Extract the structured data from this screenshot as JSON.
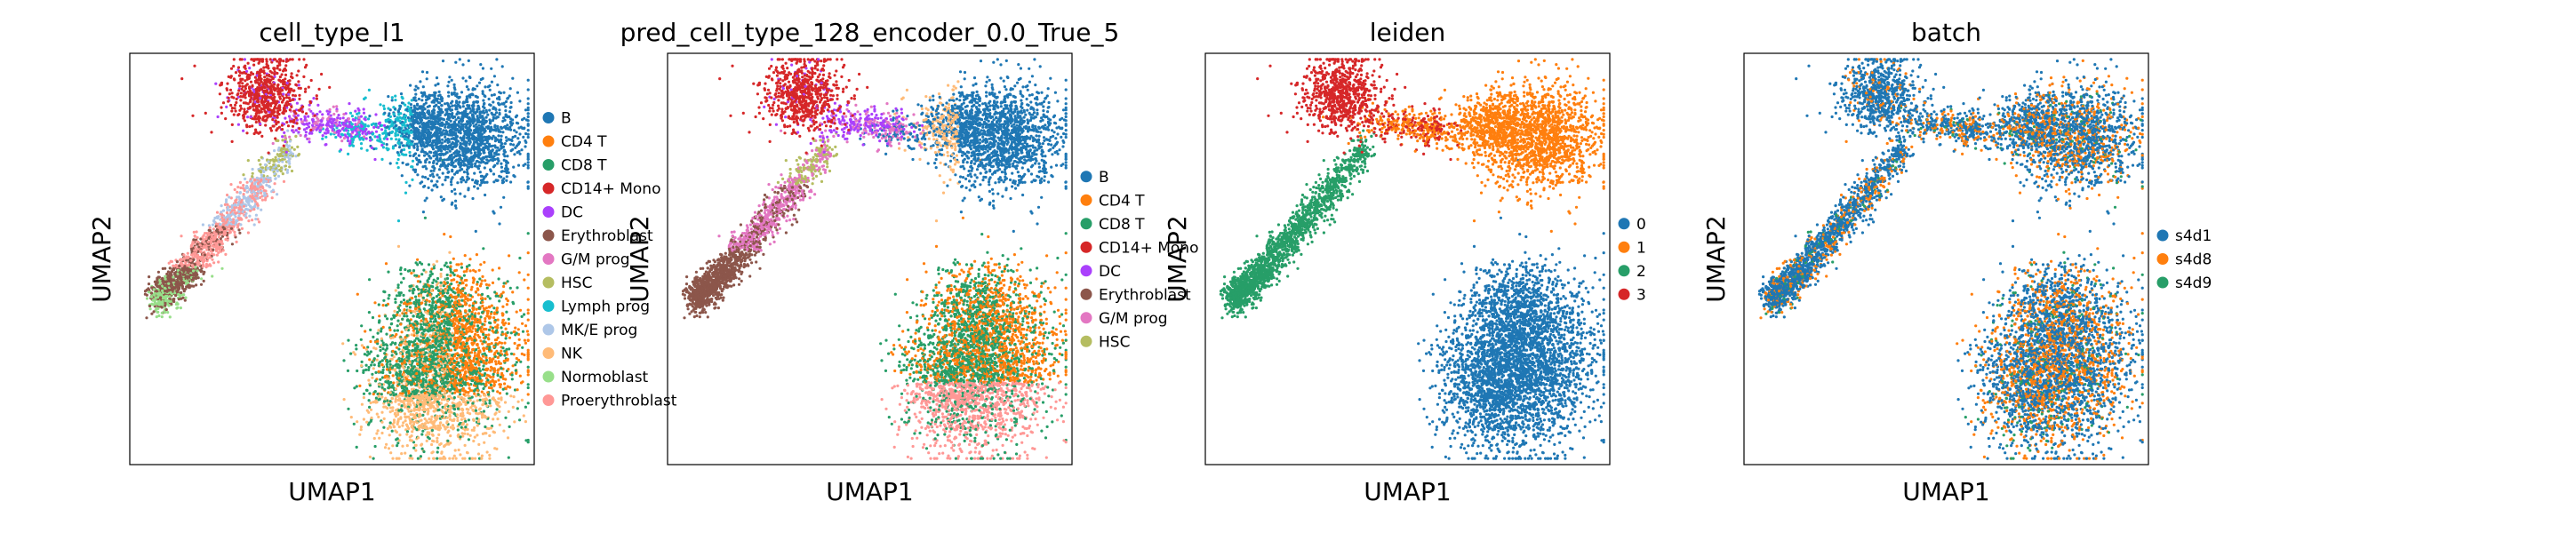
{
  "chart_data": [
    {
      "type": "scatter",
      "title": "cell_type_l1",
      "xlabel": "UMAP1",
      "ylabel": "UMAP2",
      "legend": [
        {
          "name": "B",
          "color": "#1f77b4"
        },
        {
          "name": "CD4 T",
          "color": "#ff7f0e"
        },
        {
          "name": "CD8 T",
          "color": "#279e68"
        },
        {
          "name": "CD14+ Mono",
          "color": "#d62728"
        },
        {
          "name": "DC",
          "color": "#aa40fc"
        },
        {
          "name": "Erythroblast",
          "color": "#8c564b"
        },
        {
          "name": "G/M prog",
          "color": "#e377c2"
        },
        {
          "name": "HSC",
          "color": "#b5bd61"
        },
        {
          "name": "Lymph prog",
          "color": "#17becf"
        },
        {
          "name": "MK/E prog",
          "color": "#aec7e8"
        },
        {
          "name": "NK",
          "color": "#ffbb78"
        },
        {
          "name": "Normoblast",
          "color": "#98df8a"
        },
        {
          "name": "Proerythroblast",
          "color": "#ff9896"
        }
      ]
    },
    {
      "type": "scatter",
      "title": "pred_cell_type_128_encoder_0.0_True_5",
      "xlabel": "UMAP1",
      "ylabel": "UMAP2",
      "legend": [
        {
          "name": "B",
          "color": "#1f77b4"
        },
        {
          "name": "CD4 T",
          "color": "#ff7f0e"
        },
        {
          "name": "CD8 T",
          "color": "#279e68"
        },
        {
          "name": "CD14+ Mono",
          "color": "#d62728"
        },
        {
          "name": "DC",
          "color": "#aa40fc"
        },
        {
          "name": "Erythroblast",
          "color": "#8c564b"
        },
        {
          "name": "G/M prog",
          "color": "#e377c2"
        },
        {
          "name": "HSC",
          "color": "#b5bd61"
        }
      ]
    },
    {
      "type": "scatter",
      "title": "leiden",
      "xlabel": "UMAP1",
      "ylabel": "UMAP2",
      "legend": [
        {
          "name": "0",
          "color": "#1f77b4"
        },
        {
          "name": "1",
          "color": "#ff7f0e"
        },
        {
          "name": "2",
          "color": "#279e68"
        },
        {
          "name": "3",
          "color": "#d62728"
        }
      ]
    },
    {
      "type": "scatter",
      "title": "batch",
      "xlabel": "UMAP1",
      "ylabel": "UMAP2",
      "legend": [
        {
          "name": "s4d1",
          "color": "#1f77b4"
        },
        {
          "name": "s4d8",
          "color": "#ff7f0e"
        },
        {
          "name": "s4d9",
          "color": "#279e68"
        }
      ]
    }
  ]
}
